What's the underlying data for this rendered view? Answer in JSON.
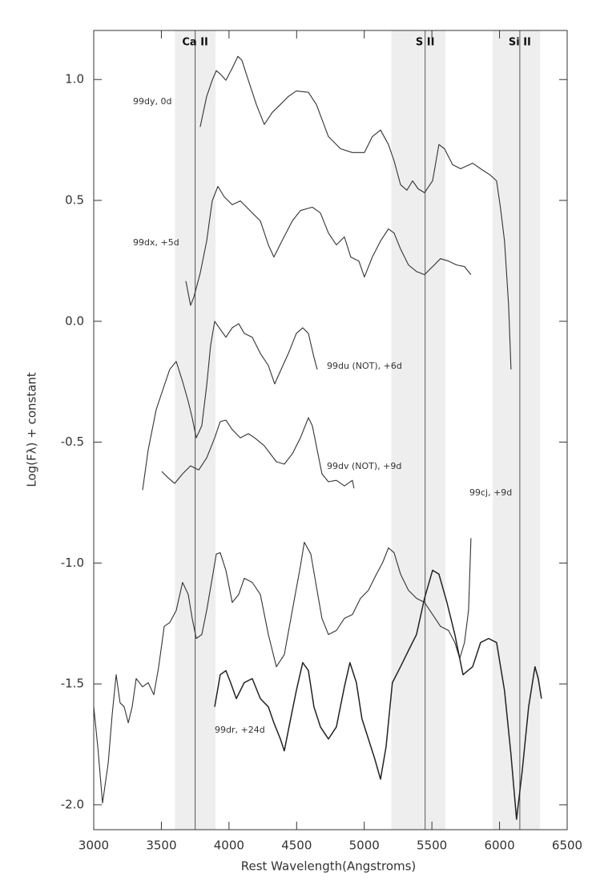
{
  "chart_data": {
    "type": "line",
    "x_label": "Rest Wavelength(Angstroms)",
    "y_label": "Log(Fλ) + constant",
    "xlim": [
      3000,
      6500
    ],
    "ylim": [
      -2.103,
      1.203
    ],
    "xticks": [
      3000,
      3500,
      4000,
      4500,
      5000,
      5500,
      6000,
      6500
    ],
    "yticks": [
      {
        "value": 1.0,
        "label": "1.0"
      },
      0.5,
      {
        "value": 0.0,
        "label": "0.0"
      },
      -0.5,
      {
        "value": -1.0,
        "label": "-1.0"
      },
      -1.5,
      {
        "value": -2.0,
        "label": "-2.0"
      }
    ],
    "grid": false,
    "bands": [
      {
        "label": "Ca II",
        "from": 3600,
        "to": 3900,
        "line": 3750
      },
      {
        "label": "S II",
        "from": 5200,
        "to": 5600,
        "line": 5450
      },
      {
        "label": "Si II",
        "from": 5950,
        "to": 6300,
        "line": 6150
      }
    ],
    "band_color": "#eeeeee",
    "series": [
      {
        "name": "99dy, 0d",
        "color": "#333333",
        "x": [
          3787,
          3835,
          3876,
          3906,
          3935,
          3977,
          4024,
          4066,
          4095,
          4143,
          4202,
          4261,
          4320,
          4380,
          4439,
          4498,
          4587,
          4646,
          4735,
          4824,
          4912,
          5001,
          5060,
          5120,
          5179,
          5220,
          5268,
          5315,
          5357,
          5398,
          5445,
          5505,
          5552,
          5593,
          5653,
          5712,
          5801,
          5860,
          5931,
          5978,
          6008,
          6037,
          6067,
          6085
        ],
        "values": [
          0.804,
          0.93,
          0.997,
          1.037,
          1.023,
          0.997,
          1.047,
          1.096,
          1.08,
          0.997,
          0.897,
          0.814,
          0.864,
          0.897,
          0.93,
          0.953,
          0.947,
          0.897,
          0.764,
          0.714,
          0.698,
          0.698,
          0.764,
          0.791,
          0.731,
          0.664,
          0.565,
          0.542,
          0.581,
          0.548,
          0.532,
          0.581,
          0.731,
          0.714,
          0.648,
          0.631,
          0.654,
          0.631,
          0.605,
          0.581,
          0.465,
          0.332,
          0.066,
          -0.199
        ]
      },
      {
        "name": "99dx, +5d",
        "color": "#333333",
        "x": [
          3681,
          3716,
          3740,
          3787,
          3835,
          3876,
          3918,
          3965,
          4024,
          4084,
          4143,
          4232,
          4291,
          4332,
          4391,
          4468,
          4528,
          4616,
          4676,
          4735,
          4794,
          4853,
          4900,
          4960,
          5001,
          5060,
          5120,
          5179,
          5220,
          5268,
          5327,
          5386,
          5445,
          5505,
          5564,
          5623,
          5682,
          5741,
          5789
        ],
        "values": [
          0.166,
          0.066,
          0.1,
          0.199,
          0.332,
          0.498,
          0.558,
          0.515,
          0.482,
          0.498,
          0.465,
          0.415,
          0.316,
          0.266,
          0.332,
          0.415,
          0.458,
          0.472,
          0.448,
          0.365,
          0.316,
          0.349,
          0.266,
          0.249,
          0.183,
          0.266,
          0.332,
          0.382,
          0.365,
          0.299,
          0.233,
          0.206,
          0.193,
          0.226,
          0.259,
          0.249,
          0.233,
          0.226,
          0.193
        ]
      },
      {
        "name": "99du (NOT), +6d",
        "color": "#333333",
        "x": [
          3361,
          3403,
          3462,
          3521,
          3562,
          3610,
          3657,
          3699,
          3728,
          3758,
          3799,
          3835,
          3864,
          3894,
          3935,
          3977,
          4024,
          4072,
          4113,
          4172,
          4232,
          4291,
          4338,
          4380,
          4439,
          4498,
          4545,
          4587,
          4628,
          4652
        ],
        "values": [
          -0.698,
          -0.532,
          -0.365,
          -0.266,
          -0.199,
          -0.166,
          -0.249,
          -0.332,
          -0.399,
          -0.482,
          -0.432,
          -0.266,
          -0.1,
          0.0,
          -0.033,
          -0.066,
          -0.027,
          -0.01,
          -0.05,
          -0.066,
          -0.133,
          -0.183,
          -0.259,
          -0.206,
          -0.133,
          -0.05,
          -0.027,
          -0.05,
          -0.149,
          -0.199
        ]
      },
      {
        "name": "99dv (NOT), +9d",
        "color": "#333333",
        "x": [
          3503,
          3551,
          3598,
          3657,
          3716,
          3776,
          3835,
          3894,
          3935,
          3977,
          4024,
          4084,
          4143,
          4190,
          4261,
          4350,
          4409,
          4468,
          4528,
          4587,
          4616,
          4646,
          4687,
          4735,
          4794,
          4853,
          4912,
          4924
        ],
        "values": [
          -0.621,
          -0.648,
          -0.671,
          -0.631,
          -0.598,
          -0.615,
          -0.565,
          -0.482,
          -0.415,
          -0.409,
          -0.448,
          -0.482,
          -0.465,
          -0.482,
          -0.515,
          -0.581,
          -0.591,
          -0.548,
          -0.482,
          -0.399,
          -0.432,
          -0.515,
          -0.631,
          -0.664,
          -0.658,
          -0.681,
          -0.658,
          -0.691
        ]
      },
      {
        "name": "99cj, +9d",
        "color": "#333333",
        "x": [
          3000,
          3030,
          3065,
          3107,
          3136,
          3166,
          3195,
          3225,
          3255,
          3284,
          3314,
          3361,
          3403,
          3444,
          3480,
          3521,
          3562,
          3610,
          3657,
          3699,
          3728,
          3758,
          3799,
          3835,
          3876,
          3906,
          3935,
          3977,
          4024,
          4072,
          4113,
          4172,
          4232,
          4291,
          4350,
          4409,
          4468,
          4528,
          4557,
          4605,
          4646,
          4687,
          4735,
          4794,
          4853,
          4912,
          4972,
          5031,
          5090,
          5137,
          5179,
          5220,
          5268,
          5327,
          5386,
          5445,
          5505,
          5564,
          5623,
          5670,
          5706,
          5741,
          5771,
          5789
        ],
        "values": [
          -1.595,
          -1.761,
          -1.993,
          -1.827,
          -1.628,
          -1.462,
          -1.578,
          -1.595,
          -1.661,
          -1.595,
          -1.478,
          -1.512,
          -1.495,
          -1.545,
          -1.429,
          -1.262,
          -1.246,
          -1.196,
          -1.08,
          -1.13,
          -1.229,
          -1.312,
          -1.296,
          -1.196,
          -1.063,
          -0.963,
          -0.957,
          -1.03,
          -1.163,
          -1.13,
          -1.063,
          -1.08,
          -1.13,
          -1.296,
          -1.429,
          -1.379,
          -1.196,
          -1.013,
          -0.914,
          -0.963,
          -1.096,
          -1.229,
          -1.296,
          -1.279,
          -1.229,
          -1.213,
          -1.146,
          -1.113,
          -1.046,
          -0.997,
          -0.937,
          -0.957,
          -1.046,
          -1.113,
          -1.146,
          -1.163,
          -1.213,
          -1.262,
          -1.279,
          -1.329,
          -1.395,
          -1.329,
          -1.196,
          -0.897
        ]
      },
      {
        "name": "99dr, +24d",
        "color": "#222222",
        "x": [
          3894,
          3935,
          3977,
          4012,
          4054,
          4113,
          4172,
          4232,
          4291,
          4332,
          4380,
          4409,
          4450,
          4498,
          4545,
          4587,
          4628,
          4676,
          4735,
          4794,
          4853,
          4894,
          4942,
          4983,
          5031,
          5078,
          5120,
          5161,
          5208,
          5268,
          5327,
          5386,
          5445,
          5505,
          5552,
          5611,
          5670,
          5730,
          5801,
          5860,
          5919,
          5978,
          6037,
          6085,
          6126,
          6168,
          6215,
          6262,
          6286,
          6310
        ],
        "values": [
          -1.595,
          -1.462,
          -1.445,
          -1.495,
          -1.561,
          -1.495,
          -1.478,
          -1.561,
          -1.595,
          -1.661,
          -1.728,
          -1.777,
          -1.661,
          -1.528,
          -1.412,
          -1.445,
          -1.595,
          -1.678,
          -1.728,
          -1.678,
          -1.512,
          -1.412,
          -1.495,
          -1.644,
          -1.728,
          -1.811,
          -1.894,
          -1.761,
          -1.495,
          -1.429,
          -1.362,
          -1.296,
          -1.146,
          -1.03,
          -1.046,
          -1.163,
          -1.296,
          -1.462,
          -1.429,
          -1.329,
          -1.312,
          -1.329,
          -1.528,
          -1.794,
          -2.06,
          -1.86,
          -1.595,
          -1.429,
          -1.478,
          -1.561
        ]
      }
    ]
  }
}
